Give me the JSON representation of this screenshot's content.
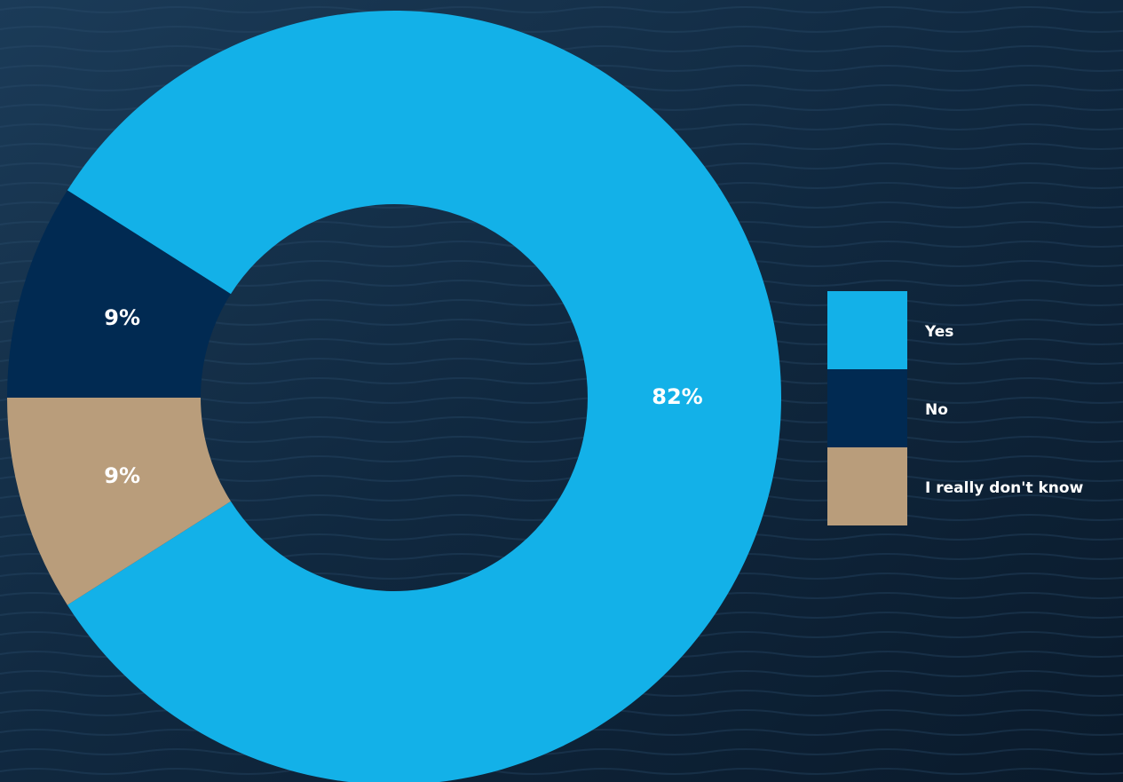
{
  "chart_data": {
    "type": "donut",
    "categories": [
      "Yes",
      "No",
      "I really don't know"
    ],
    "values": [
      82,
      9,
      9
    ],
    "value_labels": [
      "82%",
      "9%",
      "9%"
    ],
    "colors": [
      "#13b1e8",
      "#012a52",
      "#b99d7b"
    ],
    "legend": "right"
  }
}
